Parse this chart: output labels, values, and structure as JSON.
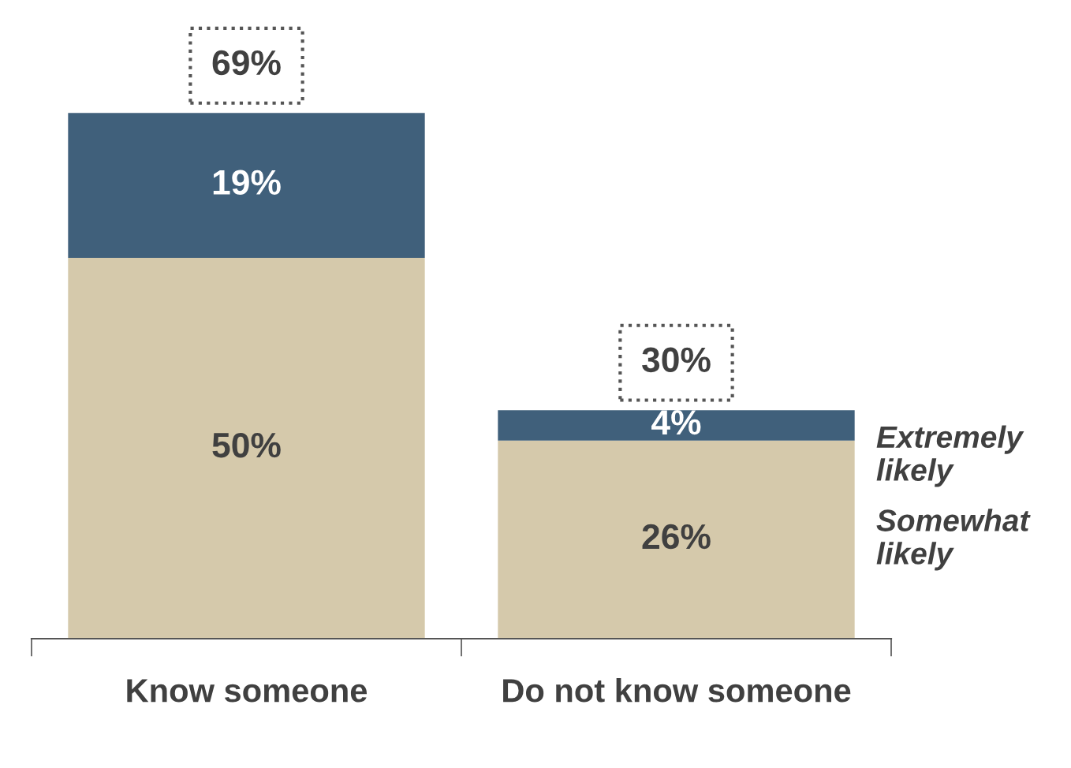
{
  "chart_data": {
    "type": "bar",
    "stacked": true,
    "categories": [
      "Know someone",
      "Do not know someone"
    ],
    "series": [
      {
        "name": "Somewhat likely",
        "color": "#d5c9ab",
        "values": [
          50,
          26
        ],
        "value_labels": [
          "50%",
          "26%"
        ]
      },
      {
        "name": "Extremely likely",
        "color": "#40607b",
        "values": [
          19,
          4
        ],
        "value_labels": [
          "19%",
          "4%"
        ]
      }
    ],
    "totals": [
      "69%",
      "30%"
    ],
    "grid": false,
    "legend": false
  }
}
